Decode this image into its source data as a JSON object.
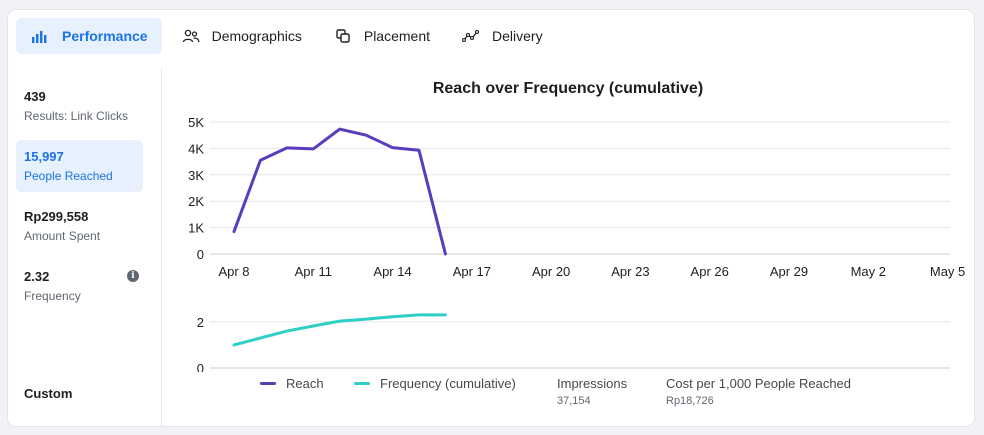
{
  "tabs": [
    {
      "label": "Performance",
      "icon": "bar-chart-icon",
      "active": true
    },
    {
      "label": "Demographics",
      "icon": "people-icon",
      "active": false
    },
    {
      "label": "Placement",
      "icon": "placement-icon",
      "active": false
    },
    {
      "label": "Delivery",
      "icon": "delivery-icon",
      "active": false
    }
  ],
  "metrics": [
    {
      "value": "439",
      "label": "Results: Link Clicks"
    },
    {
      "value": "15,997",
      "label": "People Reached",
      "selected": true
    },
    {
      "value": "Rp299,558",
      "label": "Amount Spent"
    },
    {
      "value": "2.32",
      "label": "Frequency",
      "info_icon": "info-icon"
    }
  ],
  "custom_label": "Custom",
  "colors": {
    "accent": "#1b74e4",
    "reach": "#5a3dbf",
    "frequency": "#2ecfc7",
    "selected_bg": "#e7f0fd"
  },
  "chart_data": [
    {
      "type": "line",
      "title": "Reach over Frequency (cumulative)",
      "y_tick_labels": [
        "0",
        "1K",
        "2K",
        "3K",
        "4K",
        "5K"
      ],
      "ylim": [
        0,
        5000
      ],
      "x_tick_labels": [
        "Apr 8",
        "Apr 11",
        "Apr 14",
        "Apr 17",
        "Apr 20",
        "Apr 23",
        "Apr 26",
        "Apr 29",
        "May 2",
        "May 5"
      ],
      "x_day_index": [
        0,
        3,
        6,
        9,
        12,
        15,
        18,
        21,
        24,
        27
      ],
      "x_day_range": [
        0,
        28
      ],
      "grid": true,
      "series": [
        {
          "name": "Reach",
          "day_index": [
            0,
            1,
            2,
            3,
            4,
            5,
            6,
            7,
            8
          ],
          "values": [
            850,
            3550,
            4020,
            3980,
            4730,
            4500,
            4030,
            3930,
            0
          ]
        }
      ]
    },
    {
      "type": "line",
      "y_tick_labels": [
        "0",
        "2"
      ],
      "ylim": [
        0,
        2.6
      ],
      "grid": true,
      "series": [
        {
          "name": "Frequency (cumulative)",
          "day_index": [
            0,
            1,
            2,
            3,
            4,
            5,
            6,
            7,
            8
          ],
          "values": [
            1.0,
            1.3,
            1.6,
            1.82,
            2.03,
            2.12,
            2.22,
            2.3,
            2.3
          ]
        }
      ]
    }
  ],
  "legend": [
    {
      "label": "Reach"
    },
    {
      "label": "Frequency (cumulative)"
    }
  ],
  "kpis": [
    {
      "title": "Impressions",
      "value": "37,154"
    },
    {
      "title": "Cost per 1,000 People Reached",
      "value": "Rp18,726"
    }
  ]
}
